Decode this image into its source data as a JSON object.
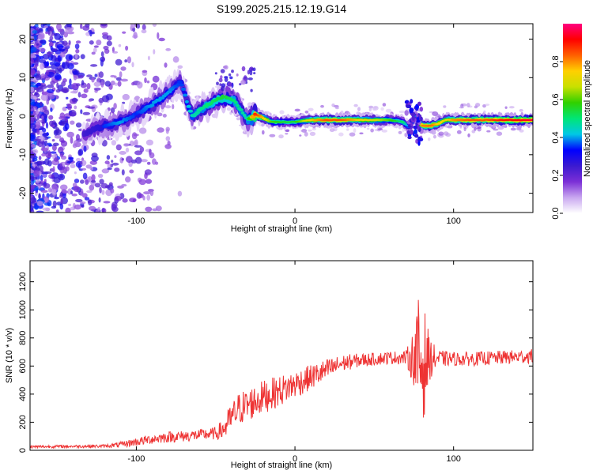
{
  "figure": {
    "title": "S199.2025.215.12.19.G14"
  },
  "chart_data": [
    {
      "type": "heatmap",
      "title": "S199.2025.215.12.19.G14",
      "xlabel": "Height of straight line (km)",
      "ylabel": "Frequency (Hz)",
      "xlim": [
        -167,
        150
      ],
      "ylim": [
        -25,
        24
      ],
      "xticks": [
        -100,
        0,
        100
      ],
      "yticks": [
        -20,
        -10,
        0,
        10,
        20
      ],
      "grid": false,
      "colorbar": {
        "label": "Normalized spectral amplitude",
        "range": [
          0,
          1
        ],
        "ticks": [
          0.0,
          0.2,
          0.4,
          0.6,
          0.8
        ],
        "colormap": [
          "#ffffff",
          "#c9a8f0",
          "#7b2fd6",
          "#3b1ad0",
          "#0000ff",
          "#00c8e6",
          "#00e676",
          "#30d000",
          "#c8e000",
          "#ffd000",
          "#ff6000",
          "#ff0000",
          "#ff0080"
        ]
      },
      "ridge": {
        "x": [
          -133,
          -120,
          -110,
          -100,
          -90,
          -80,
          -72,
          -65,
          -55,
          -45,
          -38,
          -30,
          -25,
          -15,
          -5,
          0,
          10,
          20,
          30,
          40,
          50,
          60,
          68,
          72,
          76,
          80,
          85,
          90,
          95,
          100,
          110,
          120,
          130,
          140,
          150
        ],
        "y": [
          -4.5,
          -2.5,
          -1.5,
          0.5,
          3,
          6,
          9,
          0,
          3,
          5,
          4,
          -1,
          0.5,
          -1.5,
          -1.5,
          -1.5,
          -1,
          -1,
          -1,
          -1,
          -1,
          -1,
          -1.5,
          -3,
          0,
          -2.5,
          -2.5,
          -2,
          -1,
          -1,
          -1,
          -1,
          -1,
          -1,
          -1
        ],
        "amplitude": [
          0.3,
          0.35,
          0.4,
          0.35,
          0.4,
          0.4,
          0.35,
          0.45,
          0.5,
          0.55,
          0.5,
          0.45,
          0.9,
          0.6,
          0.55,
          0.55,
          0.75,
          0.85,
          0.85,
          0.75,
          0.7,
          0.6,
          0.5,
          0.35,
          0.4,
          0.8,
          0.85,
          0.75,
          0.7,
          0.8,
          0.85,
          0.85,
          0.9,
          0.92,
          0.95
        ]
      }
    },
    {
      "type": "line",
      "xlabel": "Height of straight line (km)",
      "ylabel": "SNR (10 * v/v)",
      "xlim": [
        -167,
        150
      ],
      "ylim": [
        0,
        1350
      ],
      "xticks": [
        -100,
        0,
        100
      ],
      "yticks": [
        0,
        200,
        400,
        600,
        800,
        1000,
        1200
      ],
      "grid": false,
      "series": [
        {
          "color": "#ee3333",
          "envelope": {
            "x": [
              -167,
              -140,
              -120,
              -110,
              -100,
              -90,
              -80,
              -70,
              -60,
              -50,
              -45,
              -40,
              -35,
              -30,
              -25,
              -20,
              -10,
              0,
              10,
              20,
              30,
              40,
              50,
              60,
              70,
              75,
              78,
              80,
              82,
              85,
              90,
              100,
              110,
              120,
              130,
              140,
              150
            ],
            "y": [
              25,
              28,
              30,
              40,
              60,
              80,
              95,
              100,
              110,
              120,
              150,
              230,
              300,
              320,
              350,
              380,
              420,
              470,
              520,
              570,
              620,
              640,
              650,
              660,
              660,
              660,
              650,
              620,
              640,
              650,
              655,
              650,
              650,
              655,
              660,
              665,
              670
            ],
            "noise": [
              10,
              10,
              12,
              20,
              30,
              35,
              40,
              40,
              40,
              45,
              80,
              110,
              120,
              120,
              120,
              120,
              110,
              100,
              90,
              80,
              60,
              50,
              45,
              45,
              50,
              200,
              450,
              550,
              350,
              150,
              60,
              50,
              50,
              50,
              50,
              50,
              50
            ]
          }
        }
      ]
    }
  ]
}
